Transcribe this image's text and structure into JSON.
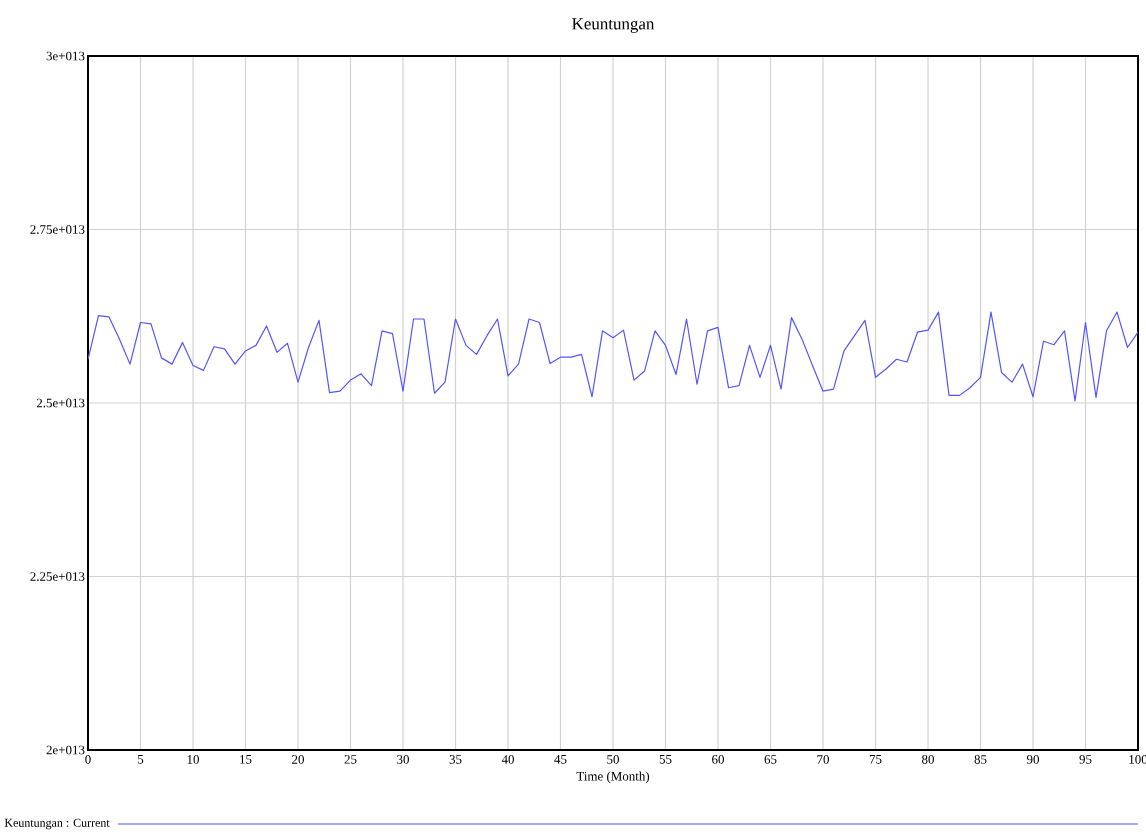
{
  "chart_data": {
    "type": "line",
    "title": "Keuntungan",
    "xlabel": "Time (Month)",
    "x": [
      0,
      1,
      2,
      3,
      4,
      5,
      6,
      7,
      8,
      9,
      10,
      11,
      12,
      13,
      14,
      15,
      16,
      17,
      18,
      19,
      20,
      21,
      22,
      23,
      24,
      25,
      26,
      27,
      28,
      29,
      30,
      31,
      32,
      33,
      34,
      35,
      36,
      37,
      38,
      39,
      40,
      41,
      42,
      43,
      44,
      45,
      46,
      47,
      48,
      49,
      50,
      51,
      52,
      53,
      54,
      55,
      56,
      57,
      58,
      59,
      60,
      61,
      62,
      63,
      64,
      65,
      66,
      67,
      68,
      69,
      70,
      71,
      72,
      73,
      74,
      75,
      76,
      77,
      78,
      79,
      80,
      81,
      82,
      83,
      84,
      85,
      86,
      87,
      88,
      89,
      90,
      91,
      92,
      93,
      94,
      95,
      96,
      97,
      98,
      99,
      100
    ],
    "series": [
      {
        "name": "Keuntungan : Current",
        "color": "#5555ff",
        "values": [
          25630000000000.0,
          26260000000000.0,
          26240000000000.0,
          25920000000000.0,
          25560000000000.0,
          26160000000000.0,
          26140000000000.0,
          25650000000000.0,
          25560000000000.0,
          25870000000000.0,
          25540000000000.0,
          25470000000000.0,
          25810000000000.0,
          25780000000000.0,
          25560000000000.0,
          25750000000000.0,
          25830000000000.0,
          26110000000000.0,
          25730000000000.0,
          25860000000000.0,
          25300000000000.0,
          25800000000000.0,
          26190000000000.0,
          25150000000000.0,
          25170000000000.0,
          25330000000000.0,
          25420000000000.0,
          25250000000000.0,
          26040000000000.0,
          26000000000000.0,
          25170000000000.0,
          26210000000000.0,
          26210000000000.0,
          25140000000000.0,
          25300000000000.0,
          26210000000000.0,
          25830000000000.0,
          25700000000000.0,
          25970000000000.0,
          26210000000000.0,
          25390000000000.0,
          25560000000000.0,
          26210000000000.0,
          26160000000000.0,
          25570000000000.0,
          25660000000000.0,
          25660000000000.0,
          25700000000000.0,
          25090000000000.0,
          26040000000000.0,
          25940000000000.0,
          26050000000000.0,
          25330000000000.0,
          25460000000000.0,
          26040000000000.0,
          25830000000000.0,
          25410000000000.0,
          26210000000000.0,
          25270000000000.0,
          26040000000000.0,
          26090000000000.0,
          25220000000000.0,
          25250000000000.0,
          25830000000000.0,
          25370000000000.0,
          25830000000000.0,
          25200000000000.0,
          26230000000000.0,
          25920000000000.0,
          25540000000000.0,
          25170000000000.0,
          25200000000000.0,
          25750000000000.0,
          25970000000000.0,
          26190000000000.0,
          25370000000000.0,
          25490000000000.0,
          25630000000000.0,
          25590000000000.0,
          26020000000000.0,
          26050000000000.0,
          26310000000000.0,
          25110000000000.0,
          25110000000000.0,
          25220000000000.0,
          25370000000000.0,
          26310000000000.0,
          25440000000000.0,
          25300000000000.0,
          25560000000000.0,
          25090000000000.0,
          25890000000000.0,
          25840000000000.0,
          26040000000000.0,
          25030000000000.0,
          26160000000000.0,
          25080000000000.0,
          26040000000000.0,
          26310000000000.0,
          25800000000000.0,
          26020000000000.0
        ]
      }
    ],
    "xlim": [
      0,
      100
    ],
    "xticks": [
      0,
      5,
      10,
      15,
      20,
      25,
      30,
      35,
      40,
      45,
      50,
      55,
      60,
      65,
      70,
      75,
      80,
      85,
      90,
      95,
      100
    ],
    "ylim": [
      20000000000000.0,
      30000000000000.0
    ],
    "yticks": [
      {
        "value": 20000000000000.0,
        "label": "2e+013"
      },
      {
        "value": 22500000000000.0,
        "label": "2.25e+013"
      },
      {
        "value": 25000000000000.0,
        "label": "2.5e+013"
      },
      {
        "value": 27500000000000.0,
        "label": "2.75e+013"
      },
      {
        "value": 30000000000000.0,
        "label": "3e+013"
      }
    ],
    "grid": true,
    "legend": "bottom"
  }
}
